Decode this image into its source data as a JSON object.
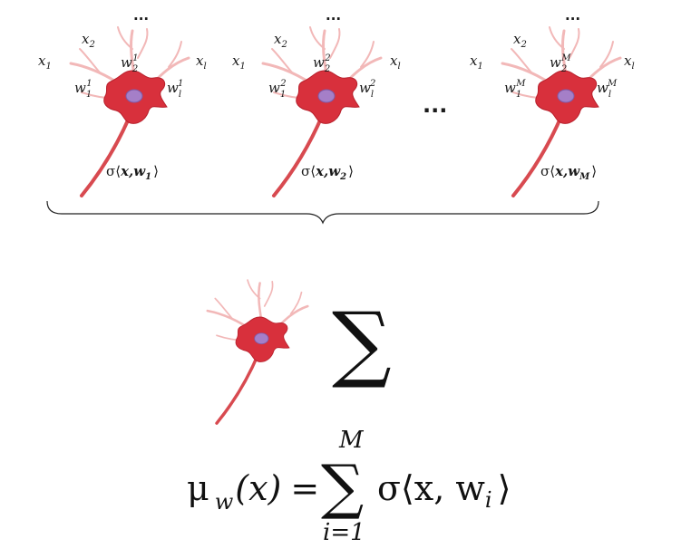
{
  "neurons": [
    {
      "x1": "x",
      "x1_sub": "1",
      "x2": "x",
      "x2_sub": "2",
      "xl": "x",
      "xl_sub": "l",
      "top_dots": "...",
      "w2": "w",
      "w2_sub": "2",
      "w2_sup": "1",
      "w1": "w",
      "w1_sub": "1",
      "w1_sup": "1",
      "wl": "w",
      "wl_sub": "l",
      "wl_sup": "1",
      "activation": "σ⟨",
      "activation_bold": "x,w",
      "activation_sub": "1",
      "activation_close": "⟩"
    },
    {
      "x1": "x",
      "x1_sub": "1",
      "x2": "x",
      "x2_sub": "2",
      "xl": "x",
      "xl_sub": "l",
      "top_dots": "...",
      "w2": "w",
      "w2_sub": "2",
      "w2_sup": "2",
      "w1": "w",
      "w1_sub": "1",
      "w1_sup": "2",
      "wl": "w",
      "wl_sub": "l",
      "wl_sup": "2",
      "activation": "σ⟨",
      "activation_bold": "x,w",
      "activation_sub": "2",
      "activation_close": "⟩"
    },
    {
      "x1": "x",
      "x1_sub": "1",
      "x2": "x",
      "x2_sub": "2",
      "xl": "x",
      "xl_sub": "l",
      "top_dots": "...",
      "w2": "w",
      "w2_sub": "2",
      "w2_sup": "M",
      "w1": "w",
      "w1_sub": "1",
      "w1_sup": "M",
      "wl": "w",
      "wl_sub": "l",
      "wl_sup": "M",
      "activation": "σ⟨",
      "activation_bold": "x,w",
      "activation_sub": "M",
      "activation_close": "⟩"
    }
  ],
  "middle_dots": "...",
  "sum_symbol": "∑",
  "formula": {
    "mu": "μ",
    "mu_sub": "w",
    "lhs_arg": "(x)",
    "equals": "=",
    "sum_symbol": "∑",
    "upper_limit": "M",
    "lower_limit": "i=1",
    "term_open": "σ⟨x, w",
    "term_sub": "i",
    "term_close": "⟩"
  }
}
